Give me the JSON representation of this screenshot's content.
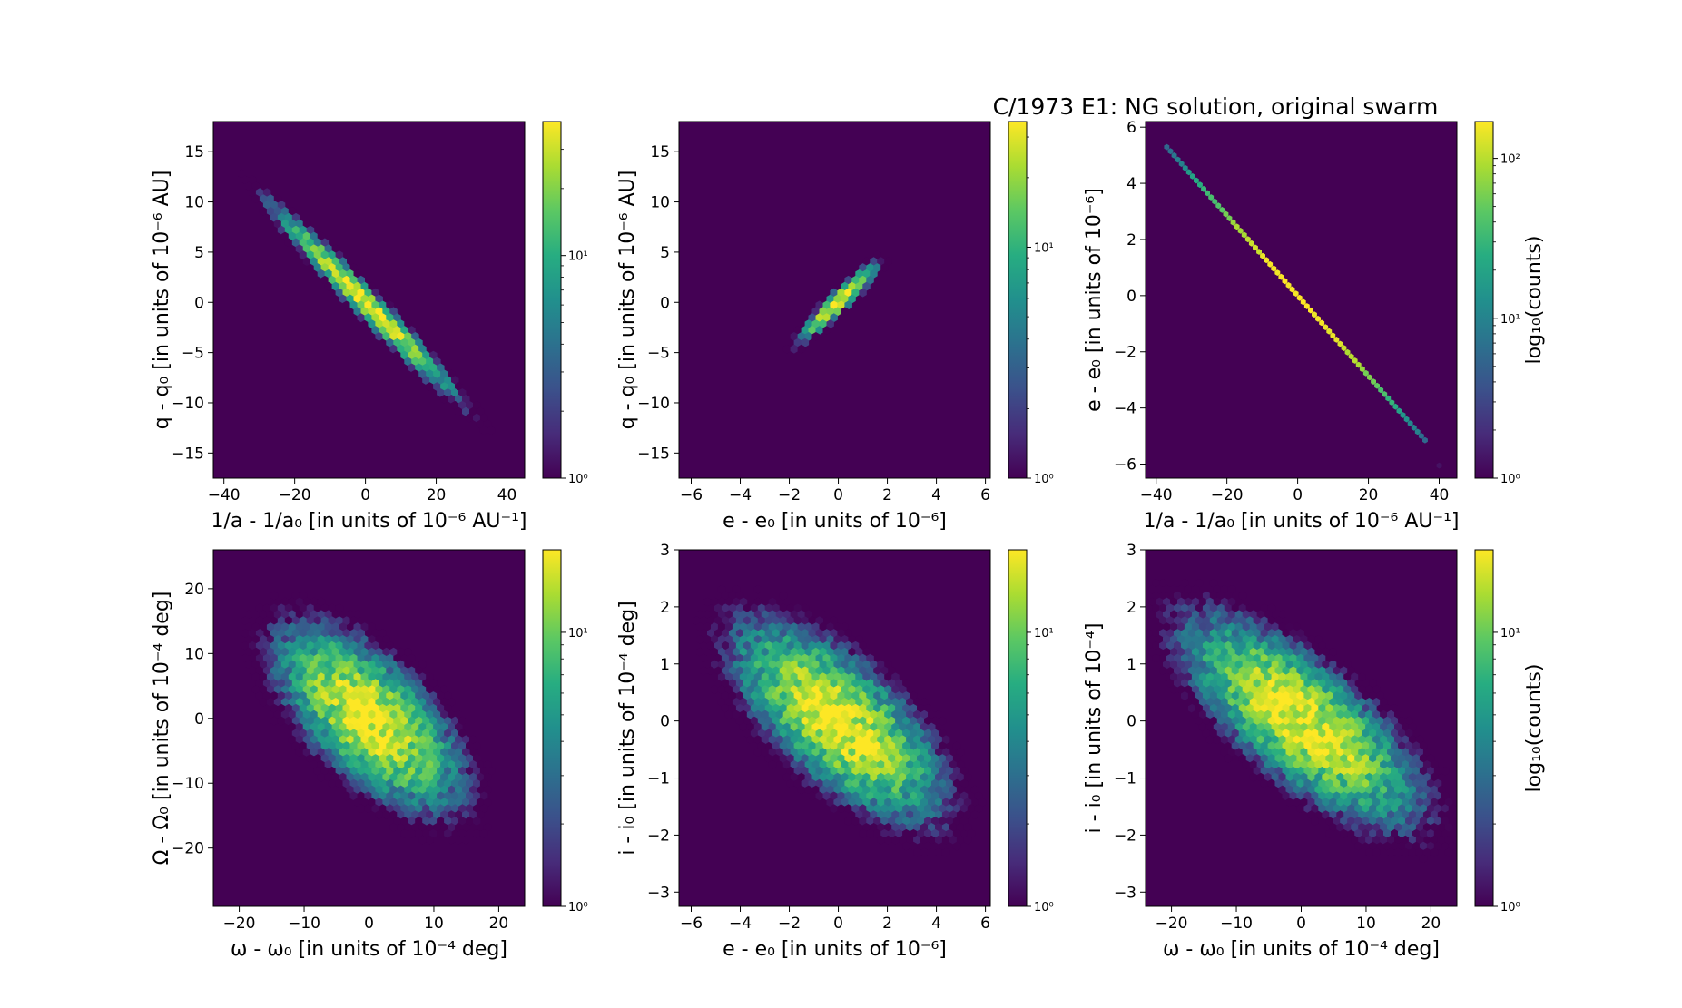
{
  "figure": {
    "title": "C/1973 E1:  NG solution, original swarm"
  },
  "colormap": [
    "#440154",
    "#472c7a",
    "#3b518b",
    "#2c718e",
    "#21908d",
    "#27ad81",
    "#5cc863",
    "#aadc32",
    "#fde725"
  ],
  "chart_data": [
    {
      "id": "p1",
      "type": "hexbin",
      "xlabel": "1/a - 1/a₀ [in units of 10⁻⁶ AU⁻¹]",
      "ylabel": "q - q₀ [in units of 10⁻⁶ AU]",
      "xlim": [
        -43,
        45
      ],
      "ylim": [
        -17.5,
        18
      ],
      "xticks": [
        -40,
        -20,
        0,
        20,
        40
      ],
      "xtick_labels": [
        "−40",
        "−20",
        "0",
        "20",
        "40"
      ],
      "yticks": [
        -15,
        -10,
        -5,
        0,
        5,
        10,
        15
      ],
      "ytick_labels": [
        "−15",
        "−10",
        "−5",
        "0",
        "5",
        "10",
        "15"
      ],
      "distribution": {
        "mean": [
          0,
          0
        ],
        "sd_major": 12.5,
        "sd_minor": 0.75,
        "slope": -0.36,
        "peak_counts": 40
      },
      "colorbar": {
        "range": [
          1,
          40
        ],
        "ticks": [
          {
            "v": 1,
            "label": "10⁰"
          },
          {
            "v": 10,
            "label": "10¹"
          }
        ],
        "label": ""
      }
    },
    {
      "id": "p2",
      "type": "hexbin",
      "xlabel": "e - e₀ [in units of 10⁻⁶]",
      "ylabel": "q - q₀ [in units of 10⁻⁶ AU]",
      "xlim": [
        -6.5,
        6.2
      ],
      "ylim": [
        -17.5,
        18
      ],
      "xticks": [
        -6,
        -4,
        -2,
        0,
        2,
        4,
        6
      ],
      "xtick_labels": [
        "−6",
        "−4",
        "−2",
        "0",
        "2",
        "4",
        "6"
      ],
      "yticks": [
        -15,
        -10,
        -5,
        0,
        5,
        10,
        15
      ],
      "ytick_labels": [
        "−15",
        "−10",
        "−5",
        "0",
        "5",
        "10",
        "15"
      ],
      "distribution": {
        "mean": [
          0,
          0
        ],
        "sd_major": 1.9,
        "sd_minor": 0.23,
        "slope": 2.5,
        "peak_counts": 35
      },
      "colorbar": {
        "range": [
          1,
          35
        ],
        "ticks": [
          {
            "v": 1,
            "label": "10⁰"
          },
          {
            "v": 10,
            "label": "10¹"
          }
        ],
        "label": ""
      }
    },
    {
      "id": "p3",
      "type": "hexbin",
      "xlabel": "1/a - 1/a₀ [in units of 10⁻⁶ AU⁻¹]",
      "ylabel": "e - e₀ [in units of 10⁻⁶]",
      "xlim": [
        -43,
        45
      ],
      "ylim": [
        -6.5,
        6.2
      ],
      "xticks": [
        -40,
        -20,
        0,
        20,
        40
      ],
      "xtick_labels": [
        "−40",
        "−20",
        "0",
        "20",
        "40"
      ],
      "yticks": [
        -6,
        -4,
        -2,
        0,
        2,
        4,
        6
      ],
      "ytick_labels": [
        "−6",
        "−4",
        "−2",
        "0",
        "2",
        "4",
        "6"
      ],
      "line": {
        "x_range": [
          -37,
          36
        ],
        "slope": -0.143,
        "peak_counts": 170
      },
      "colorbar": {
        "range": [
          1,
          170
        ],
        "ticks": [
          {
            "v": 1,
            "label": "10⁰"
          },
          {
            "v": 10,
            "label": "10¹"
          },
          {
            "v": 100,
            "label": "10²"
          }
        ],
        "label": "log₁₀(counts)"
      }
    },
    {
      "id": "p4",
      "type": "hexbin",
      "xlabel": "ω - ω₀ [in units of 10⁻⁴ deg]",
      "ylabel": "Ω - Ω₀ [in units of 10⁻⁴ deg]",
      "xlim": [
        -24,
        24
      ],
      "ylim": [
        -29,
        26
      ],
      "xticks": [
        -20,
        -10,
        0,
        10,
        20
      ],
      "xtick_labels": [
        "−20",
        "−10",
        "0",
        "10",
        "20"
      ],
      "yticks": [
        -20,
        -10,
        0,
        10,
        20
      ],
      "ytick_labels": [
        "−20",
        "−10",
        "0",
        "10",
        "20"
      ],
      "distribution": {
        "mean": [
          0,
          0
        ],
        "sd_major": 9.0,
        "sd_minor": 4.2,
        "slope": -1.0,
        "peak_counts": 20
      },
      "colorbar": {
        "range": [
          1,
          20
        ],
        "ticks": [
          {
            "v": 1,
            "label": "10⁰"
          },
          {
            "v": 10,
            "label": "10¹"
          }
        ],
        "label": ""
      }
    },
    {
      "id": "p5",
      "type": "hexbin",
      "xlabel": "e - e₀ [in units of 10⁻⁶]",
      "ylabel": "i - i₀ [in units of 10⁻⁴ deg]",
      "xlim": [
        -6.5,
        6.2
      ],
      "ylim": [
        -3.25,
        3
      ],
      "xticks": [
        -6,
        -4,
        -2,
        0,
        2,
        4,
        6
      ],
      "xtick_labels": [
        "−6",
        "−4",
        "−2",
        "0",
        "2",
        "4",
        "6"
      ],
      "yticks": [
        -3,
        -2,
        -1,
        0,
        1,
        2,
        3
      ],
      "ytick_labels": [
        "−3",
        "−2",
        "−1",
        "0",
        "1",
        "2",
        "3"
      ],
      "distribution": {
        "mean": [
          0,
          0
        ],
        "sd_major": 2.2,
        "sd_minor": 0.6,
        "slope": -0.3,
        "peak_counts": 20
      },
      "colorbar": {
        "range": [
          1,
          20
        ],
        "ticks": [
          {
            "v": 1,
            "label": "10⁰"
          },
          {
            "v": 10,
            "label": "10¹"
          }
        ],
        "label": ""
      }
    },
    {
      "id": "p6",
      "type": "hexbin",
      "xlabel": "ω - ω₀ [in units of 10⁻⁴ deg]",
      "ylabel": "i - i₀ [in units of 10⁻⁴]",
      "xlim": [
        -24,
        24
      ],
      "ylim": [
        -3.25,
        3
      ],
      "xticks": [
        -20,
        -10,
        0,
        10,
        20
      ],
      "xtick_labels": [
        "−20",
        "−10",
        "0",
        "10",
        "20"
      ],
      "yticks": [
        -3,
        -2,
        -1,
        0,
        1,
        2,
        3
      ],
      "ytick_labels": [
        "−3",
        "−2",
        "−1",
        "0",
        "1",
        "2",
        "3"
      ],
      "distribution": {
        "mean": [
          0,
          0
        ],
        "sd_major": 9.0,
        "sd_minor": 0.6,
        "slope": -0.075,
        "peak_counts": 20
      },
      "colorbar": {
        "range": [
          1,
          20
        ],
        "ticks": [
          {
            "v": 1,
            "label": "10⁰"
          },
          {
            "v": 10,
            "label": "10¹"
          }
        ],
        "label": "log₁₀(counts)"
      }
    }
  ]
}
